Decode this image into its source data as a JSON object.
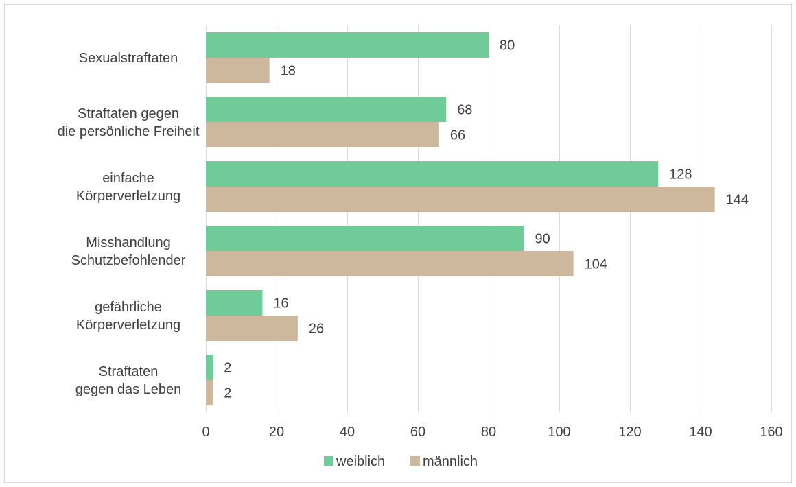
{
  "chart_data": {
    "type": "bar",
    "orientation": "horizontal",
    "categories": [
      [
        "Sexualstraftaten"
      ],
      [
        "Straftaten gegen",
        "die persönliche Freiheit"
      ],
      [
        "einfache",
        "Körperverletzung"
      ],
      [
        "Misshandlung",
        "Schutzbefohlender"
      ],
      [
        "gefährliche",
        "Körperverletzung"
      ],
      [
        "Straftaten",
        "gegen das Leben"
      ]
    ],
    "series": [
      {
        "name": "weiblich",
        "color": "#6fcb97",
        "values": [
          80,
          68,
          128,
          90,
          16,
          2
        ]
      },
      {
        "name": "männlich",
        "color": "#cdb89d",
        "values": [
          18,
          66,
          144,
          104,
          26,
          2
        ]
      }
    ],
    "xlim": [
      0,
      160
    ],
    "xticks": [
      0,
      20,
      40,
      60,
      80,
      100,
      120,
      140,
      160
    ],
    "grid": true,
    "legend_position": "bottom",
    "data_labels": true,
    "title": "",
    "xlabel": "",
    "ylabel": ""
  }
}
